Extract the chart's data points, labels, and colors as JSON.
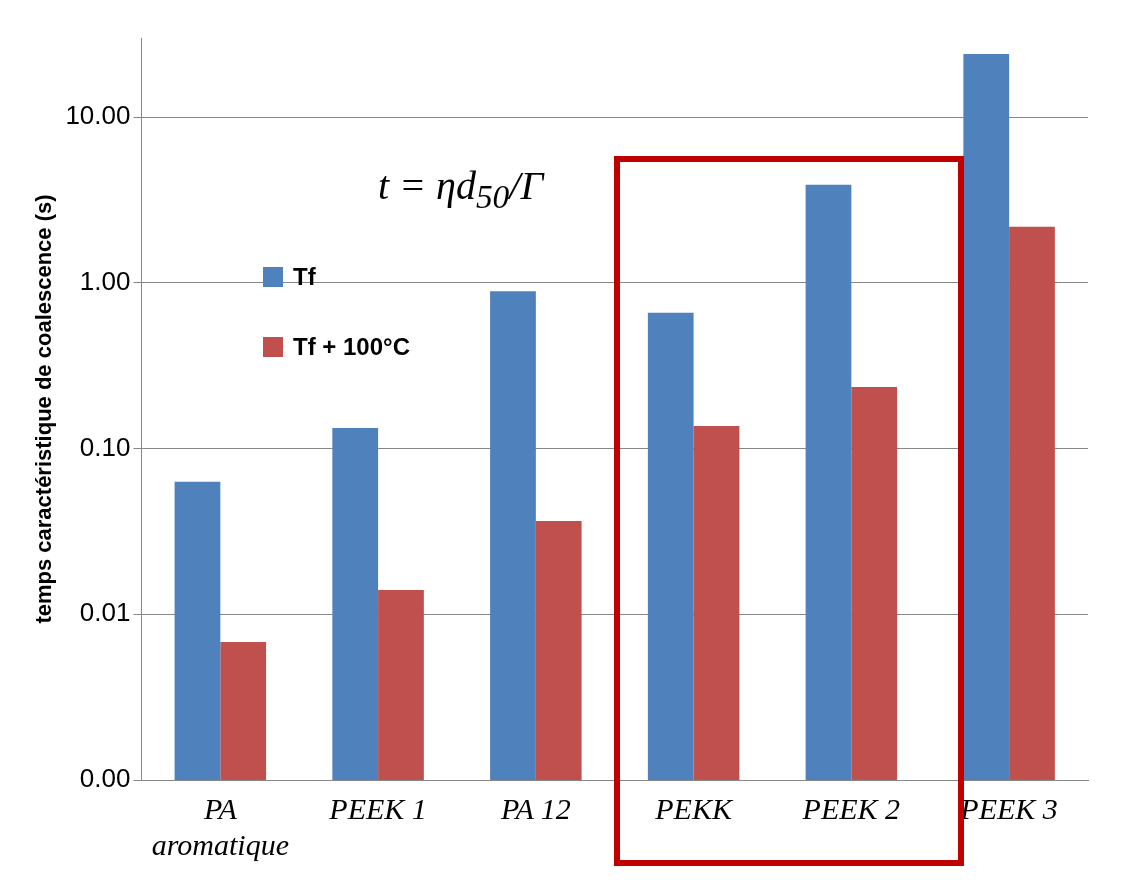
{
  "chart_data": {
    "type": "bar",
    "ylabel": "temps caractéristique de coalescence (s)",
    "categories": [
      "PA aromatique",
      "PEEK 1",
      "PA 12",
      "PEKK",
      "PEEK 2",
      "PEEK 3"
    ],
    "series": [
      {
        "name": "Tf",
        "color": "#4f81bd",
        "values": [
          0.063,
          0.133,
          0.89,
          0.66,
          3.9,
          24
        ]
      },
      {
        "name": "Tf + 100°C",
        "color": "#c0504d",
        "values": [
          0.0068,
          0.014,
          0.0365,
          0.137,
          0.235,
          2.18
        ]
      }
    ],
    "log": "y",
    "ylim": [
      0.001,
      30
    ],
    "yticks": [
      {
        "value": 0.001,
        "label": "0.00"
      },
      0.01,
      {
        "value": 0.1,
        "label": "0.10"
      },
      {
        "value": 1,
        "label": "1.00"
      },
      {
        "value": 10,
        "label": "10.00"
      }
    ],
    "grid": "y",
    "legend": "top left",
    "annotations": [
      "t = ηd$_{50}$/Γ"
    ]
  }
}
